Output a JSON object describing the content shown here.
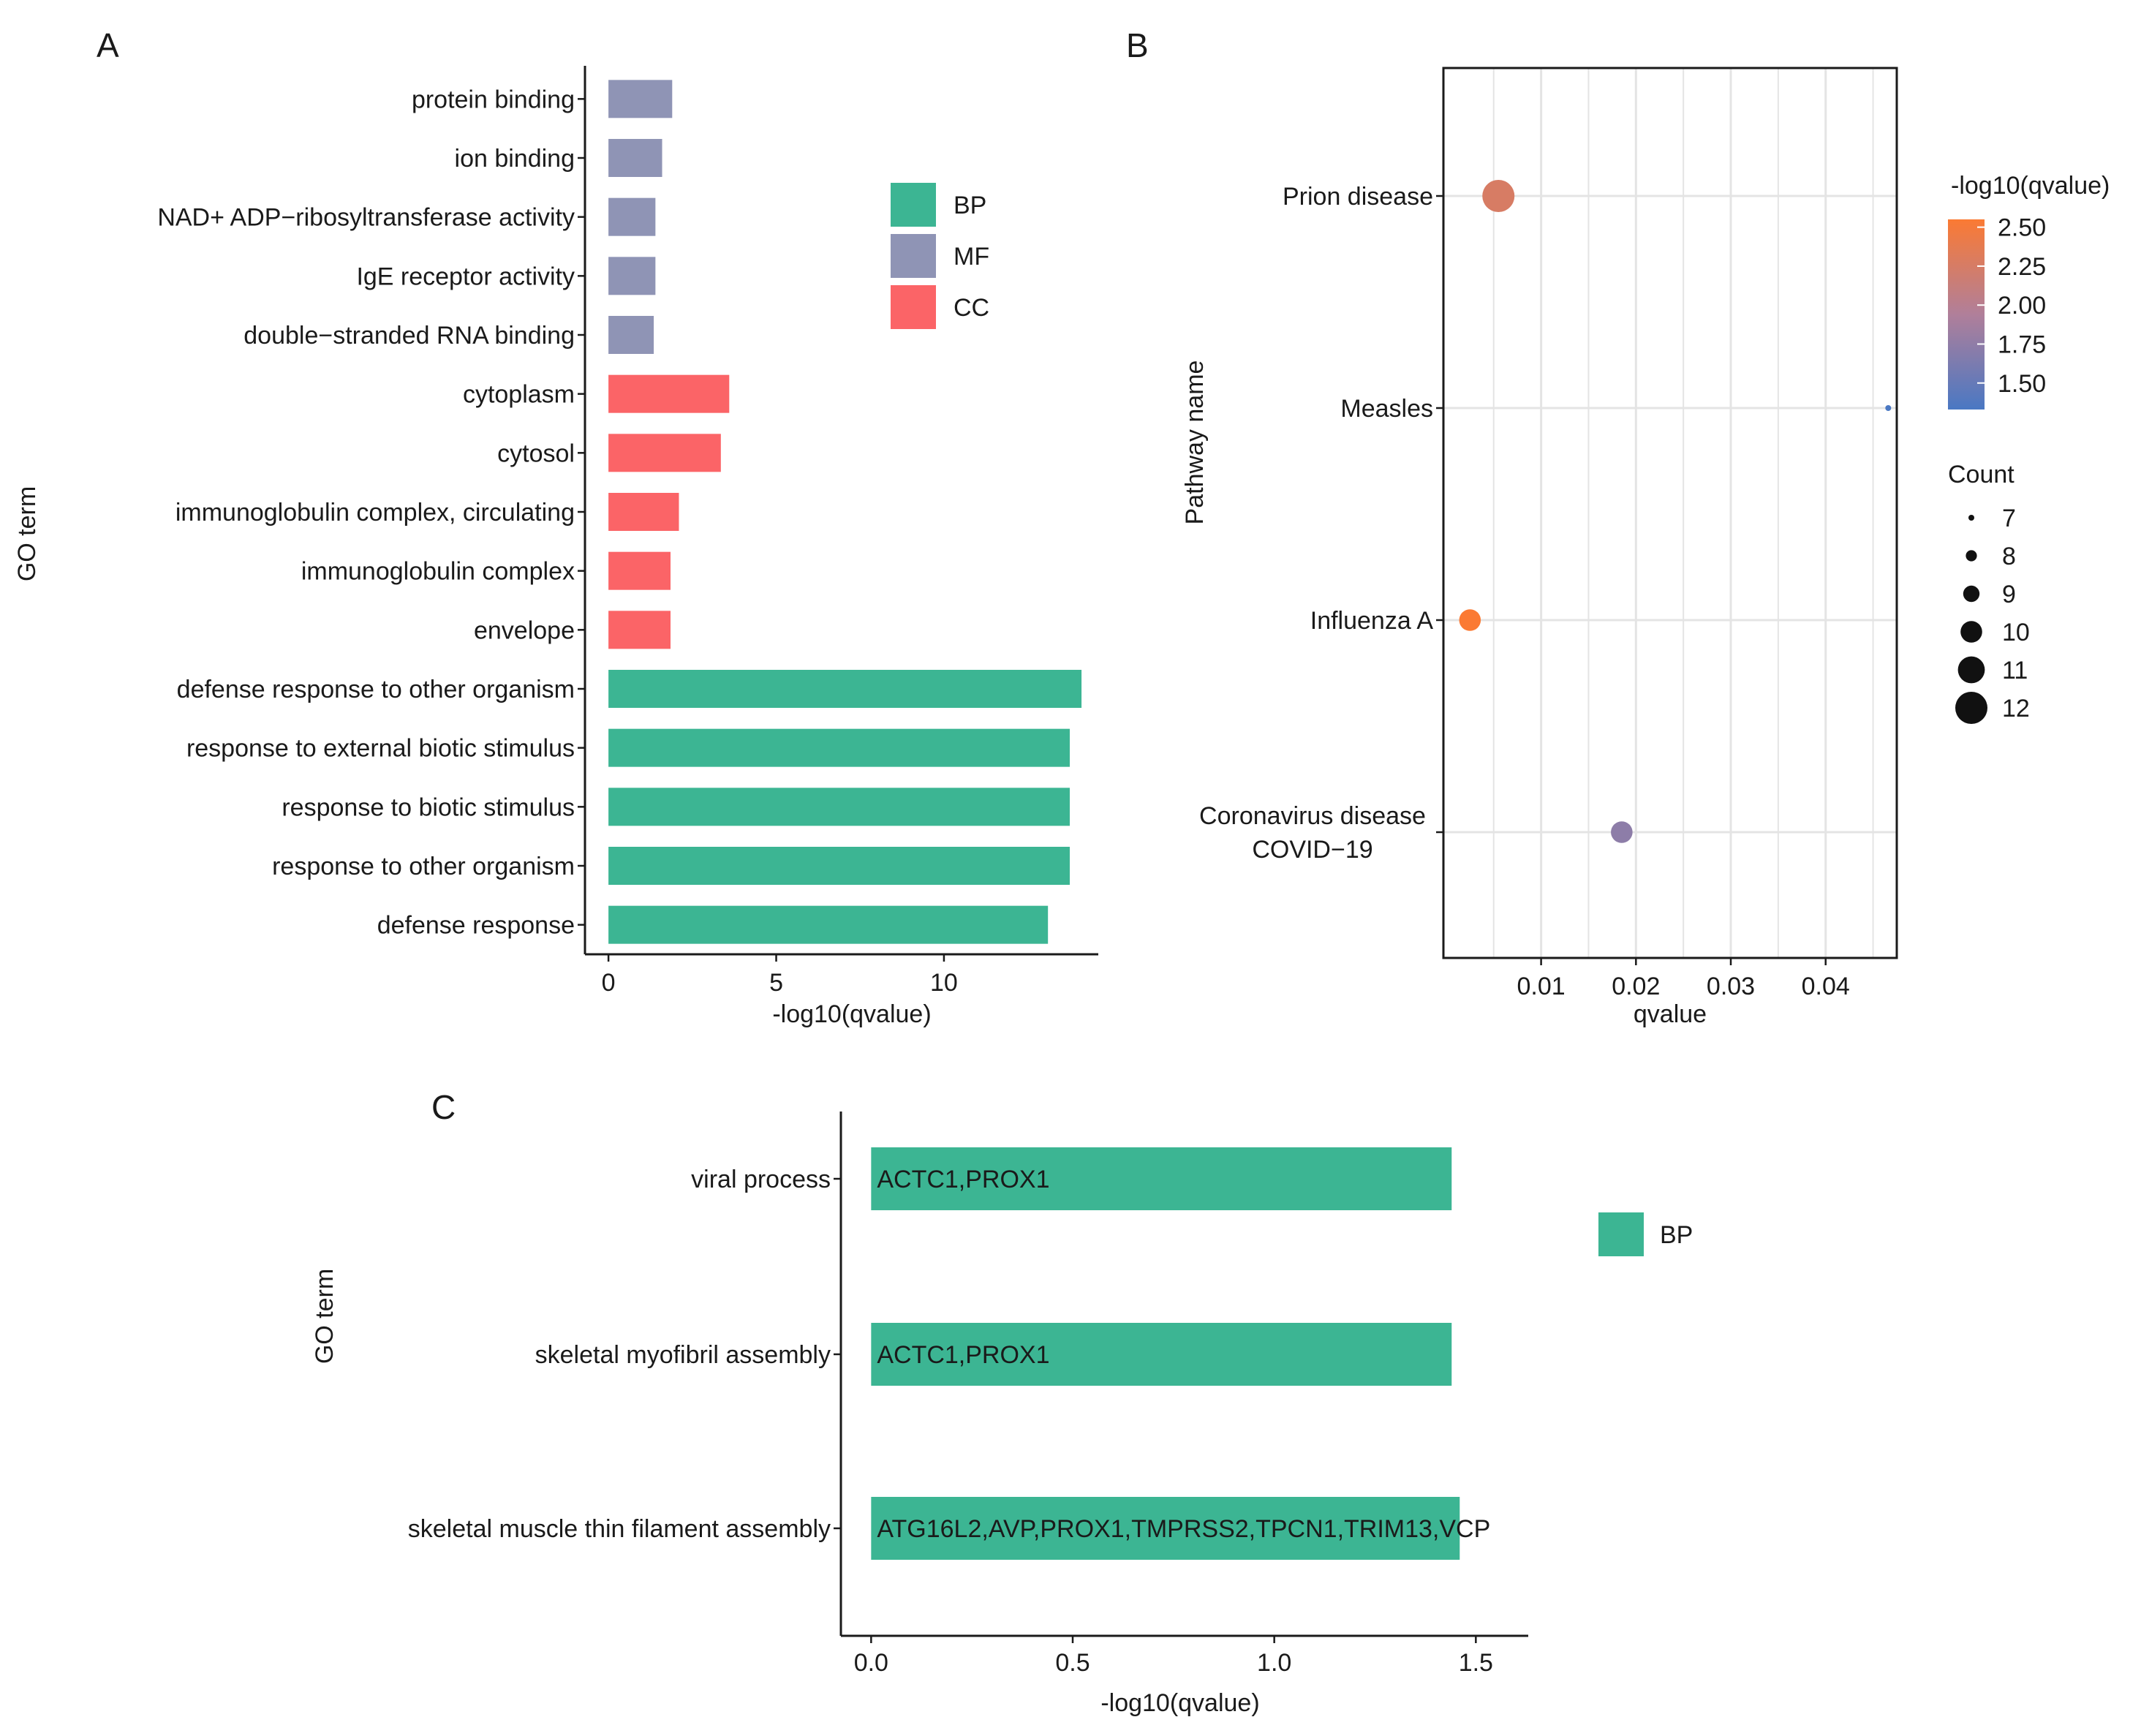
{
  "colors": {
    "BP": "#3cb593",
    "MF": "#8f94b5",
    "CC": "#fb6467",
    "axis": "#1a1a1a",
    "grid": "#e9e9e9",
    "grad_high": "#fb7a33",
    "grad_low": "#4a78c3"
  },
  "chart_data": [
    {
      "panel": "A",
      "type": "bar",
      "orientation": "horizontal",
      "xlabel": "-log10(qvalue)",
      "ylabel": "GO term",
      "xlim": [
        -0.7,
        14.6
      ],
      "xticks": [
        0,
        5,
        10
      ],
      "legend": {
        "position": "top-right",
        "entries": [
          "BP",
          "MF",
          "CC"
        ]
      },
      "bars": [
        {
          "term": "protein binding",
          "value": 1.9,
          "category": "MF"
        },
        {
          "term": "ion binding",
          "value": 1.6,
          "category": "MF"
        },
        {
          "term": "NAD+ ADP−ribosyltransferase activity",
          "value": 1.4,
          "category": "MF"
        },
        {
          "term": "IgE receptor activity",
          "value": 1.4,
          "category": "MF"
        },
        {
          "term": "double−stranded RNA binding",
          "value": 1.35,
          "category": "MF"
        },
        {
          "term": "cytoplasm",
          "value": 3.6,
          "category": "CC"
        },
        {
          "term": "cytosol",
          "value": 3.35,
          "category": "CC"
        },
        {
          "term": "immunoglobulin complex, circulating",
          "value": 2.1,
          "category": "CC"
        },
        {
          "term": "immunoglobulin complex",
          "value": 1.85,
          "category": "CC"
        },
        {
          "term": "envelope",
          "value": 1.85,
          "category": "CC"
        },
        {
          "term": "defense response to other organism",
          "value": 14.1,
          "category": "BP"
        },
        {
          "term": "response to external biotic stimulus",
          "value": 13.75,
          "category": "BP"
        },
        {
          "term": "response to biotic stimulus",
          "value": 13.75,
          "category": "BP"
        },
        {
          "term": "response to other organism",
          "value": 13.75,
          "category": "BP"
        },
        {
          "term": "defense response",
          "value": 13.1,
          "category": "BP"
        }
      ]
    },
    {
      "panel": "B",
      "type": "scatter",
      "xlabel": "qvalue",
      "ylabel": "Pathway name",
      "xlim": [
        -0.0003,
        0.0475
      ],
      "xticks": [
        0.01,
        0.02,
        0.03,
        0.04
      ],
      "xtick_labels": [
        "0.01",
        "0.02",
        "0.03",
        "0.04"
      ],
      "color_legend_title": "-log10(qvalue)",
      "color_range": [
        1.33,
        2.55
      ],
      "color_ticks": [
        "2.50",
        "2.25",
        "2.00",
        "1.75",
        "1.50"
      ],
      "size_legend_title": "Count",
      "size_legend": [
        7,
        8,
        9,
        10,
        11,
        12
      ],
      "points": [
        {
          "pathway": "Prion disease",
          "label_lines": [
            "Prion disease"
          ],
          "qvalue": 0.0055,
          "neglog10q": 2.26,
          "count": 12
        },
        {
          "pathway": "Measles",
          "label_lines": [
            "Measles"
          ],
          "qvalue": 0.0466,
          "neglog10q": 1.33,
          "count": 7
        },
        {
          "pathway": "Influenza A",
          "label_lines": [
            "Influenza A"
          ],
          "qvalue": 0.0025,
          "neglog10q": 2.55,
          "count": 10
        },
        {
          "pathway": "Coronavirus disease COVID−19",
          "label_lines": [
            "Coronavirus disease",
            "COVID−19"
          ],
          "qvalue": 0.0185,
          "neglog10q": 1.73,
          "count": 10
        }
      ]
    },
    {
      "panel": "C",
      "type": "bar",
      "orientation": "horizontal",
      "xlabel": "-log10(qvalue)",
      "ylabel": "GO term",
      "xlim": [
        -0.075,
        1.63
      ],
      "xticks": [
        0,
        0.5,
        1,
        1.5
      ],
      "xtick_labels": [
        "0.0",
        "0.5",
        "1.0",
        "1.5"
      ],
      "legend": {
        "position": "right",
        "entries": [
          "BP"
        ]
      },
      "bars": [
        {
          "term": "viral process",
          "value": 1.44,
          "category": "BP",
          "genes": "ACTC1,PROX1"
        },
        {
          "term": "skeletal myofibril assembly",
          "value": 1.44,
          "category": "BP",
          "genes": "ACTC1,PROX1"
        },
        {
          "term": "skeletal muscle thin filament assembly",
          "value": 1.46,
          "category": "BP",
          "genes": "ATG16L2,AVP,PROX1,TMPRSS2,TPCN1,TRIM13,VCP"
        }
      ]
    }
  ]
}
